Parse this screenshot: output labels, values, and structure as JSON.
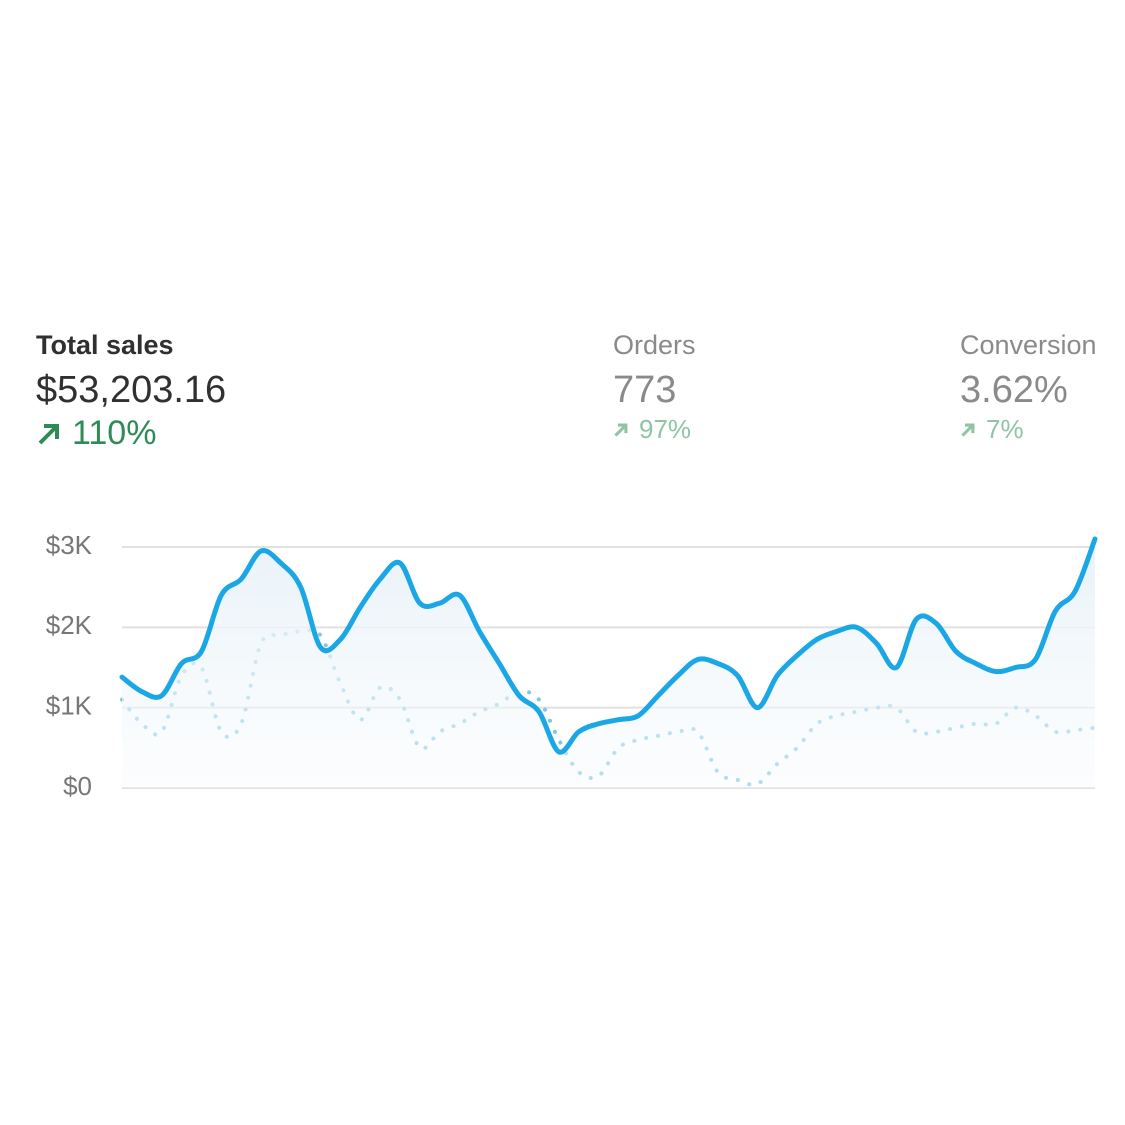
{
  "metrics": [
    {
      "label": "Total sales",
      "value": "$53,203.16",
      "change": "110%"
    },
    {
      "label": "Orders",
      "value": "773",
      "change": "97%"
    },
    {
      "label": "Conversion",
      "value": "3.62%",
      "change": "7%"
    }
  ],
  "chart_data": {
    "type": "line",
    "categories": [
      null,
      null,
      null,
      null,
      null,
      null,
      null,
      null,
      null,
      null,
      null,
      null,
      null,
      null,
      null,
      null,
      null,
      null,
      null,
      null,
      null,
      null,
      null,
      null,
      null,
      null,
      null,
      null,
      null,
      null,
      null,
      null,
      null,
      null,
      null,
      null,
      null,
      null,
      null,
      null,
      null,
      null,
      null,
      null,
      null,
      null,
      null,
      null,
      null,
      null
    ],
    "series": [
      {
        "color": "#1ba7e6",
        "style": "solid",
        "values": [
          1380,
          1200,
          1150,
          1550,
          1700,
          2400,
          2600,
          2950,
          2800,
          2500,
          1750,
          1850,
          2250,
          2600,
          2800,
          2300,
          2300,
          2400,
          1950,
          1550,
          1150,
          950,
          450,
          700,
          800,
          850,
          900,
          1150,
          1400,
          1600,
          1550,
          1400,
          1000,
          1400,
          1650,
          1850,
          1950,
          2000,
          1800,
          1500,
          2100,
          2050,
          1700,
          1550,
          1450,
          1500,
          1600,
          2200,
          2450,
          3100
        ]
      },
      {
        "color": "#7ec8e3",
        "style": "dotted",
        "values": [
          1100,
          800,
          700,
          1400,
          1500,
          700,
          800,
          1800,
          1900,
          1950,
          1900,
          1300,
          850,
          1250,
          1100,
          500,
          700,
          800,
          950,
          1050,
          1200,
          1100,
          600,
          200,
          150,
          500,
          600,
          650,
          700,
          700,
          200,
          100,
          50,
          300,
          500,
          800,
          900,
          950,
          1000,
          1000,
          700,
          700,
          750,
          800,
          800,
          1000,
          900,
          700,
          720,
          750
        ]
      }
    ],
    "ylim": [
      0,
      3000
    ],
    "yticks": [
      {
        "value": 0,
        "label": "$0"
      },
      {
        "value": 1000,
        "label": "$1K"
      },
      {
        "value": 2000,
        "label": "$2K"
      },
      {
        "value": 3000,
        "label": "$3K"
      }
    ],
    "grid": true
  }
}
